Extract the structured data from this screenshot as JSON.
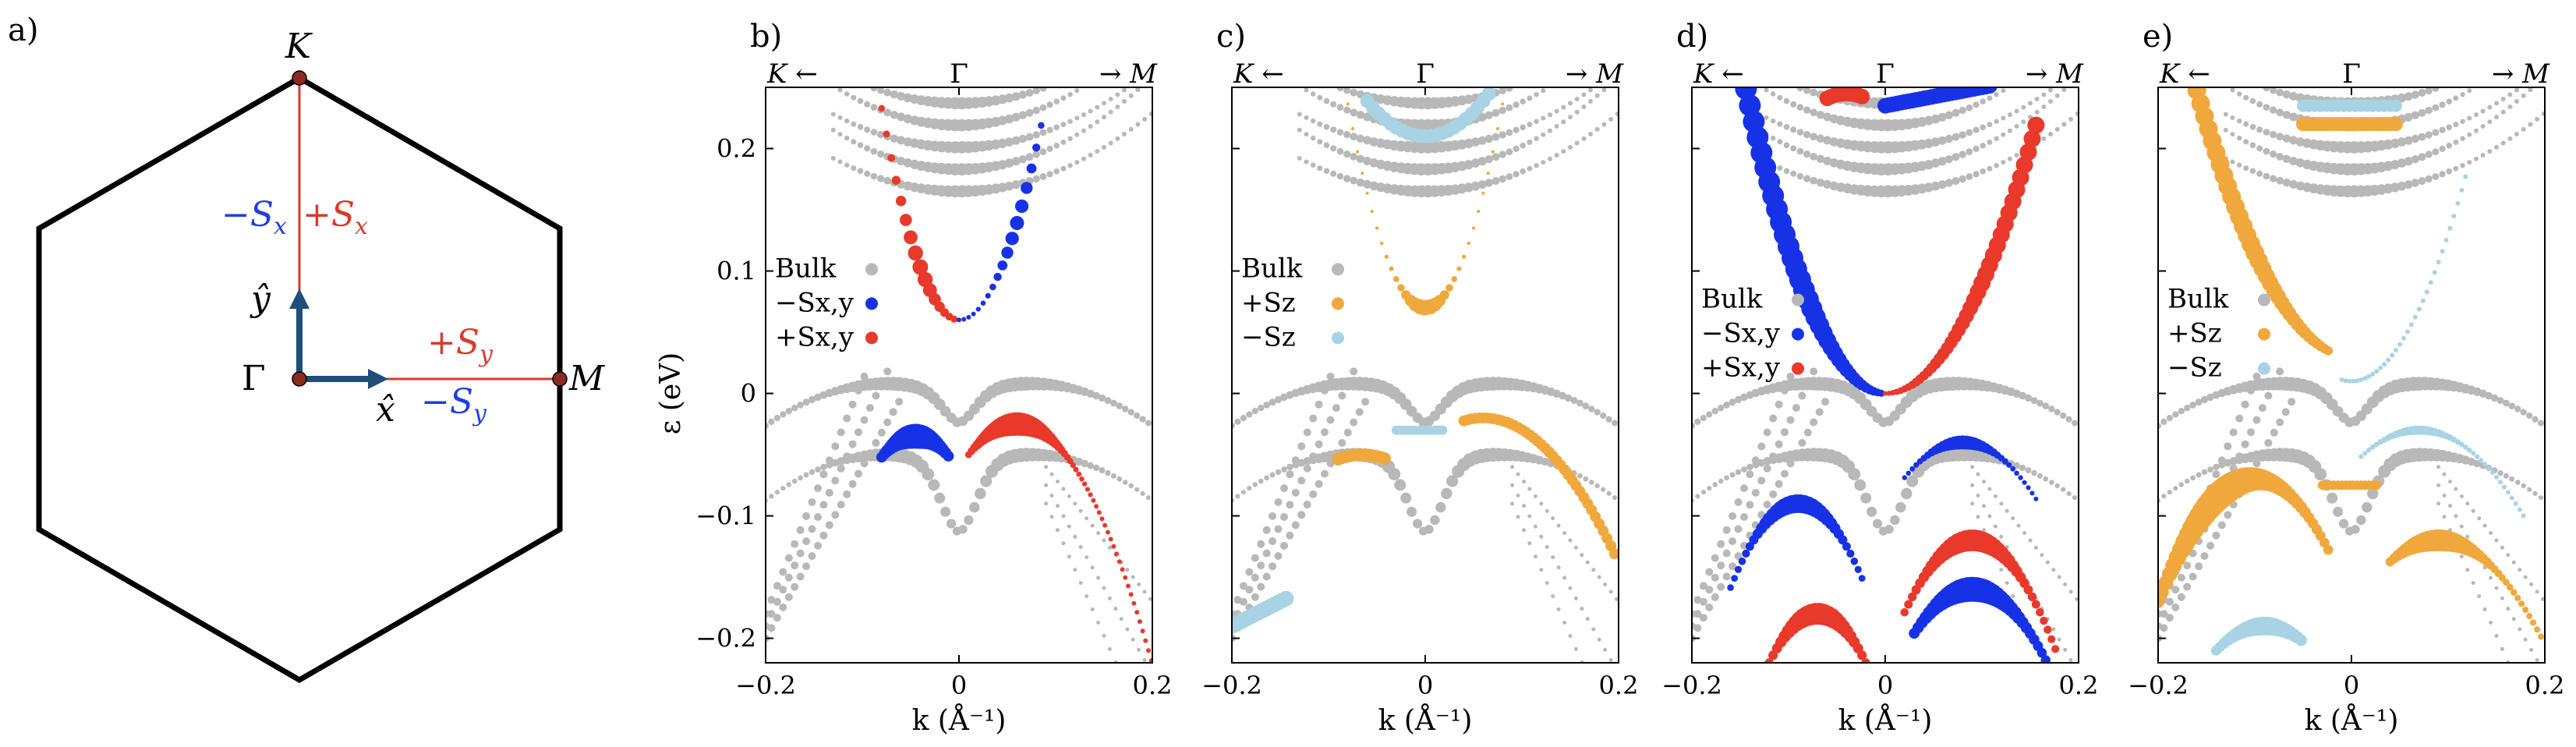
{
  "panel_a": {
    "label": "a)",
    "points": {
      "K": "K",
      "M": "M",
      "Gamma": "Γ"
    },
    "x_hat": "x̂",
    "y_hat": "ŷ",
    "ann_minus_sx": "−S",
    "ann_minus_sx_sub": "x",
    "ann_plus_sx": "+S",
    "ann_plus_sx_sub": "x",
    "ann_plus_sy": "+S",
    "ann_plus_sy_sub": "y",
    "ann_minus_sy": "−S",
    "ann_minus_sy_sub": "y",
    "colors": {
      "red": "#d93a2b",
      "blue": "#1f3fe0",
      "navy": "#1f4e79",
      "black": "#000000"
    }
  },
  "colors": {
    "bulk": "#b8b8b8",
    "blue": "#1732e6",
    "red": "#e8392b",
    "orange": "#f0a83c",
    "lightblue": "#a8d3e4"
  },
  "chart_data": [
    {
      "id": "b",
      "type": "scatter",
      "label": "b)",
      "xlabel": "k (Å⁻¹)",
      "ylabel": "ε (eV)",
      "xlim": [
        -0.2,
        0.2
      ],
      "ylim": [
        -0.22,
        0.25
      ],
      "xticks": [
        "−0.2",
        "0",
        "0.2"
      ],
      "yticks": [
        "−0.2",
        "−0.1",
        "0",
        "0.1",
        "0.2"
      ],
      "top_left": "K ←",
      "top_center": "Γ",
      "top_right": "→ M",
      "legend": [
        {
          "name": "Bulk",
          "color": "#b8b8b8"
        },
        {
          "name": "−Sx,y",
          "color": "#1732e6"
        },
        {
          "name": "+Sx,y",
          "color": "#e8392b"
        }
      ],
      "highlight": "spinxy"
    },
    {
      "id": "c",
      "type": "scatter",
      "label": "c)",
      "xlabel": "k (Å⁻¹)",
      "ylabel": "",
      "xlim": [
        -0.2,
        0.2
      ],
      "ylim": [
        -0.22,
        0.25
      ],
      "xticks": [
        "−0.2",
        "0",
        "0.2"
      ],
      "yticks": [],
      "top_left": "K ←",
      "top_center": "Γ",
      "top_right": "→ M",
      "legend": [
        {
          "name": "Bulk",
          "color": "#b8b8b8"
        },
        {
          "name": "+Sz",
          "color": "#f0a83c"
        },
        {
          "name": "−Sz",
          "color": "#a8d3e4"
        }
      ],
      "highlight": "spinz"
    },
    {
      "id": "d",
      "type": "scatter",
      "label": "d)",
      "xlabel": "k (Å⁻¹)",
      "ylabel": "",
      "xlim": [
        -0.2,
        0.2
      ],
      "ylim": [
        -0.22,
        0.25
      ],
      "xticks": [
        "−0.2",
        "0",
        "0.2"
      ],
      "yticks": [],
      "top_left": "K ←",
      "top_center": "Γ",
      "top_right": "→ M",
      "legend": [
        {
          "name": "Bulk",
          "color": "#b8b8b8"
        },
        {
          "name": "−Sx,y",
          "color": "#1732e6"
        },
        {
          "name": "+Sx,y",
          "color": "#e8392b"
        }
      ],
      "highlight": "spinxy_d"
    },
    {
      "id": "e",
      "type": "scatter",
      "label": "e)",
      "xlabel": "k (Å⁻¹)",
      "ylabel": "",
      "xlim": [
        -0.2,
        0.2
      ],
      "ylim": [
        -0.22,
        0.25
      ],
      "xticks": [
        "−0.2",
        "0",
        "0.2"
      ],
      "yticks": [],
      "top_left": "K ←",
      "top_center": "Γ",
      "top_right": "→ M",
      "legend": [
        {
          "name": "Bulk",
          "color": "#b8b8b8"
        },
        {
          "name": "+Sz",
          "color": "#f0a83c"
        },
        {
          "name": "−Sz",
          "color": "#a8d3e4"
        }
      ],
      "highlight": "spinz_e"
    }
  ]
}
